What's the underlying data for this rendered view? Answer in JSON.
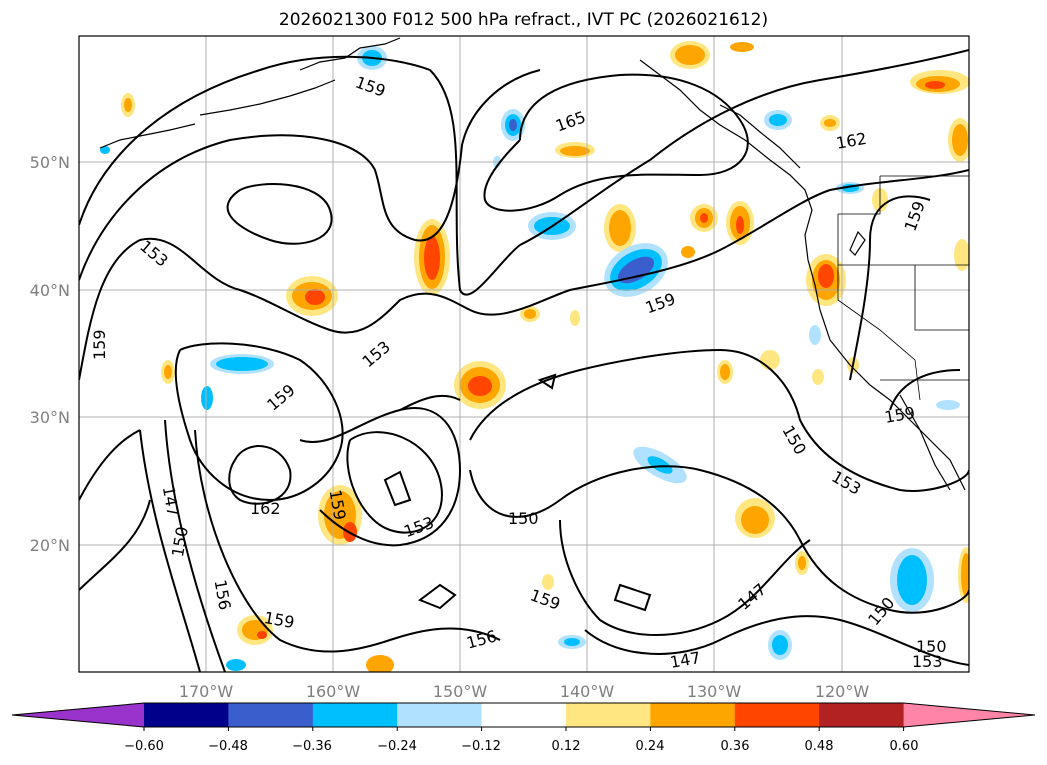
{
  "title": "2026021300 F012 500 hPa refract., IVT PC (2026021612)",
  "lat_labels": [
    "50°N",
    "40°N",
    "30°N",
    "20°N"
  ],
  "lon_labels": [
    "170°W",
    "160°W",
    "150°W",
    "140°W",
    "130°W",
    "120°W"
  ],
  "contour_labels": [
    "159",
    "165",
    "162",
    "153",
    "159",
    "153",
    "159",
    "159",
    "159",
    "162",
    "159",
    "153",
    "150",
    "150",
    "147",
    "150",
    "156",
    "159",
    "159",
    "156",
    "150",
    "147",
    "147",
    "150",
    "153",
    "159",
    "153"
  ],
  "colorbar": {
    "ticks": [
      "−0.60",
      "−0.48",
      "−0.36",
      "−0.24",
      "−0.12",
      "0.12",
      "0.24",
      "0.36",
      "0.48",
      "0.60"
    ],
    "colors": [
      "#9933cc",
      "#00008b",
      "#3a5fcd",
      "#00bfff",
      "#b0e2ff",
      "#ffffff",
      "#ffe680",
      "#ffa500",
      "#ff4500",
      "#b22222",
      "#ff85a8"
    ]
  }
}
